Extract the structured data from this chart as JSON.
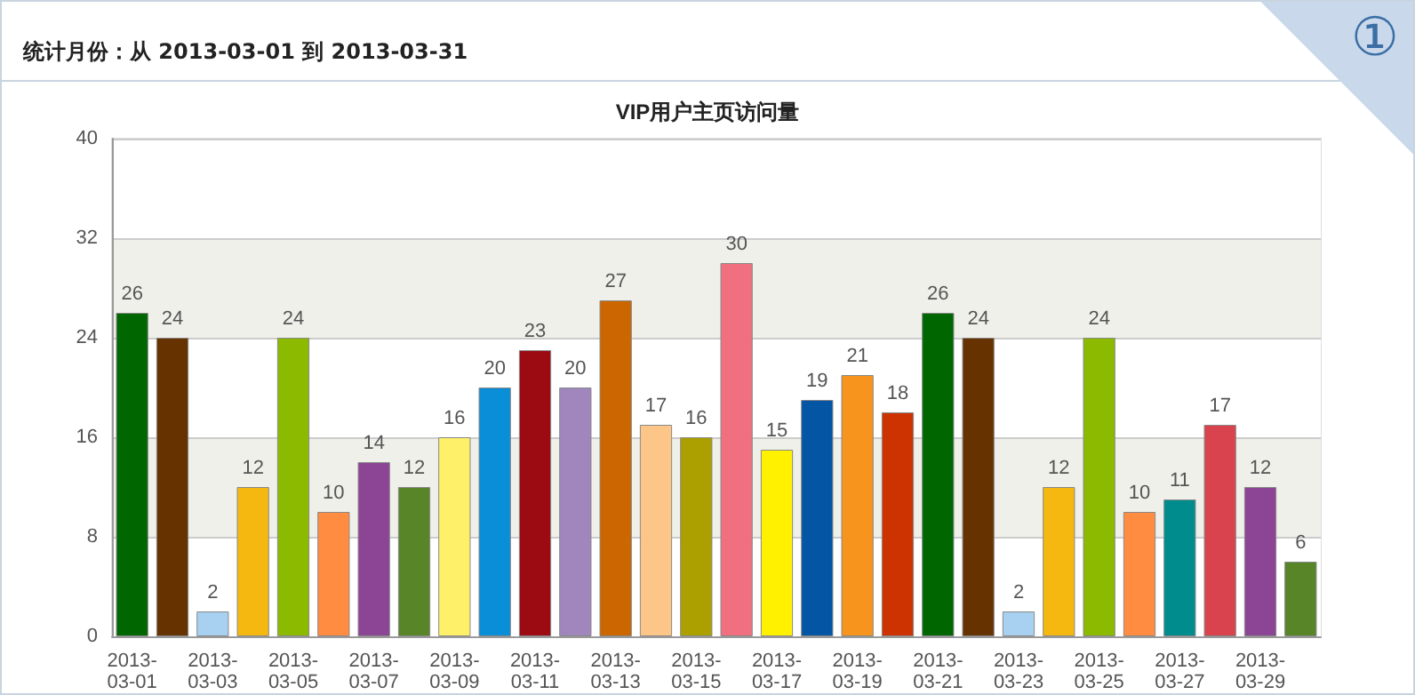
{
  "chart_data": {
    "type": "bar",
    "title": "VIP用户主页访问量",
    "annotations": [
      "统计月份：从 2013-03-01 到 2013-03-31",
      "①"
    ],
    "categories": [
      "2013-03-01",
      null,
      "2013-03-03",
      null,
      "2013-03-05",
      null,
      "2013-03-07",
      null,
      "2013-03-09",
      null,
      "2013-03-11",
      null,
      "2013-03-13",
      null,
      "2013-03-15",
      null,
      "2013-03-17",
      null,
      "2013-03-19",
      null,
      "2013-03-21",
      null,
      "2013-03-23",
      null,
      "2013-03-25",
      null,
      "2013-03-27",
      null,
      "2013-03-29",
      null
    ],
    "values": [
      26,
      24,
      2,
      12,
      24,
      10,
      14,
      12,
      16,
      20,
      23,
      20,
      27,
      17,
      16,
      30,
      15,
      19,
      21,
      18,
      26,
      24,
      2,
      12,
      24,
      10,
      11,
      17,
      12,
      6
    ],
    "colors": [
      "#006600",
      "#663300",
      "#a8d0f0",
      "#f5b811",
      "#8cba00",
      "#ff8c40",
      "#8b4594",
      "#588527",
      "#fff06a",
      "#0b8ed8",
      "#9c0a12",
      "#a186be",
      "#cc6600",
      "#fdc689",
      "#aba000",
      "#f0707f",
      "#fff100",
      "#0455a4",
      "#f7941d",
      "#cc3300",
      "#006600",
      "#663300",
      "#a8d0f0",
      "#f5b811",
      "#8cba00",
      "#ff8c40",
      "#008c8c",
      "#d9434d",
      "#8b4594",
      "#588527"
    ],
    "ylim": [
      0,
      40
    ],
    "yticks": [
      0,
      8,
      16,
      24,
      32,
      40
    ],
    "grid": "y",
    "data_labels": true
  }
}
